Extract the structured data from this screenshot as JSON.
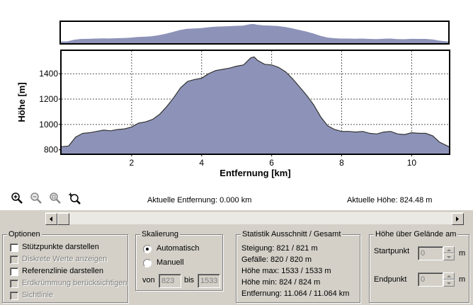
{
  "chart_data": {
    "type": "area",
    "xlabel": "Entfernung [km]",
    "ylabel": "Höhe [m]",
    "xlim": [
      0,
      11.064
    ],
    "ylim": [
      770,
      1580
    ],
    "x_ticks": [
      2,
      4,
      6,
      8,
      10
    ],
    "y_ticks": [
      800,
      1000,
      1200,
      1400
    ],
    "grid": true,
    "fill_color": "#8d93b8",
    "line_color": "#333333",
    "x": [
      0,
      0.2,
      0.4,
      0.6,
      0.8,
      1.0,
      1.2,
      1.4,
      1.6,
      1.8,
      2.0,
      2.2,
      2.4,
      2.6,
      2.8,
      3.0,
      3.2,
      3.4,
      3.6,
      3.8,
      4.0,
      4.2,
      4.4,
      4.6,
      4.8,
      5.0,
      5.2,
      5.4,
      5.5,
      5.6,
      5.8,
      6.0,
      6.2,
      6.4,
      6.6,
      6.8,
      7.0,
      7.2,
      7.4,
      7.6,
      7.8,
      8.0,
      8.2,
      8.4,
      8.6,
      8.8,
      9.0,
      9.2,
      9.4,
      9.6,
      9.8,
      10.0,
      10.2,
      10.4,
      10.6,
      10.8,
      11.064
    ],
    "y": [
      824,
      830,
      900,
      930,
      935,
      945,
      955,
      950,
      960,
      965,
      980,
      1010,
      1020,
      1040,
      1080,
      1140,
      1210,
      1290,
      1340,
      1355,
      1365,
      1400,
      1425,
      1435,
      1445,
      1460,
      1470,
      1525,
      1533,
      1505,
      1475,
      1470,
      1450,
      1415,
      1360,
      1295,
      1230,
      1155,
      1060,
      990,
      960,
      945,
      945,
      940,
      945,
      930,
      925,
      940,
      945,
      925,
      920,
      935,
      930,
      930,
      910,
      860,
      824
    ]
  },
  "overview": {
    "label": ""
  },
  "toolbar": {
    "icons": [
      "zoom-in-icon",
      "zoom-out-icon",
      "zoom-fit-icon",
      "zoom-select-icon"
    ]
  },
  "readouts": {
    "entfernung": "Aktuelle Entfernung: 0.000 km",
    "hoehe": "Aktuelle Höhe: 824.48 m"
  },
  "optionen": {
    "title": "Optionen",
    "items": [
      {
        "label": "Stützpunkte darstellen",
        "checked": false,
        "enabled": true
      },
      {
        "label": "Diskrete Werte anzeigen",
        "checked": false,
        "enabled": false
      },
      {
        "label": "Referenzlinie darstellen",
        "checked": false,
        "enabled": true
      },
      {
        "label": "Erdkrümmung berücksichtigen",
        "checked": false,
        "enabled": false
      },
      {
        "label": "Sichtlinie",
        "checked": false,
        "enabled": false
      }
    ]
  },
  "skalierung": {
    "title": "Skalierung",
    "auto_label": "Automatisch",
    "manual_label": "Manuell",
    "von_label": "von",
    "bis_label": "bis",
    "von_value": "823",
    "bis_value": "1533",
    "selected": "auto"
  },
  "statistik": {
    "title": "Statistik  Ausschnitt / Gesamt",
    "steigung": "Steigung: 821 / 821 m",
    "gefaelle": "Gefälle: 820 / 820 m",
    "hoehe_max": "Höhe max: 1533 / 1533 m",
    "hoehe_min": "Höhe min: 824 / 824 m",
    "entfernung": "Entfernung: 11.064 / 11.064 km"
  },
  "gelaende": {
    "title": "Höhe über Gelände am",
    "startpunkt_label": "Startpunkt",
    "endpunkt_label": "Endpunkt",
    "start_value": "0",
    "end_value": "0",
    "unit": "m"
  }
}
